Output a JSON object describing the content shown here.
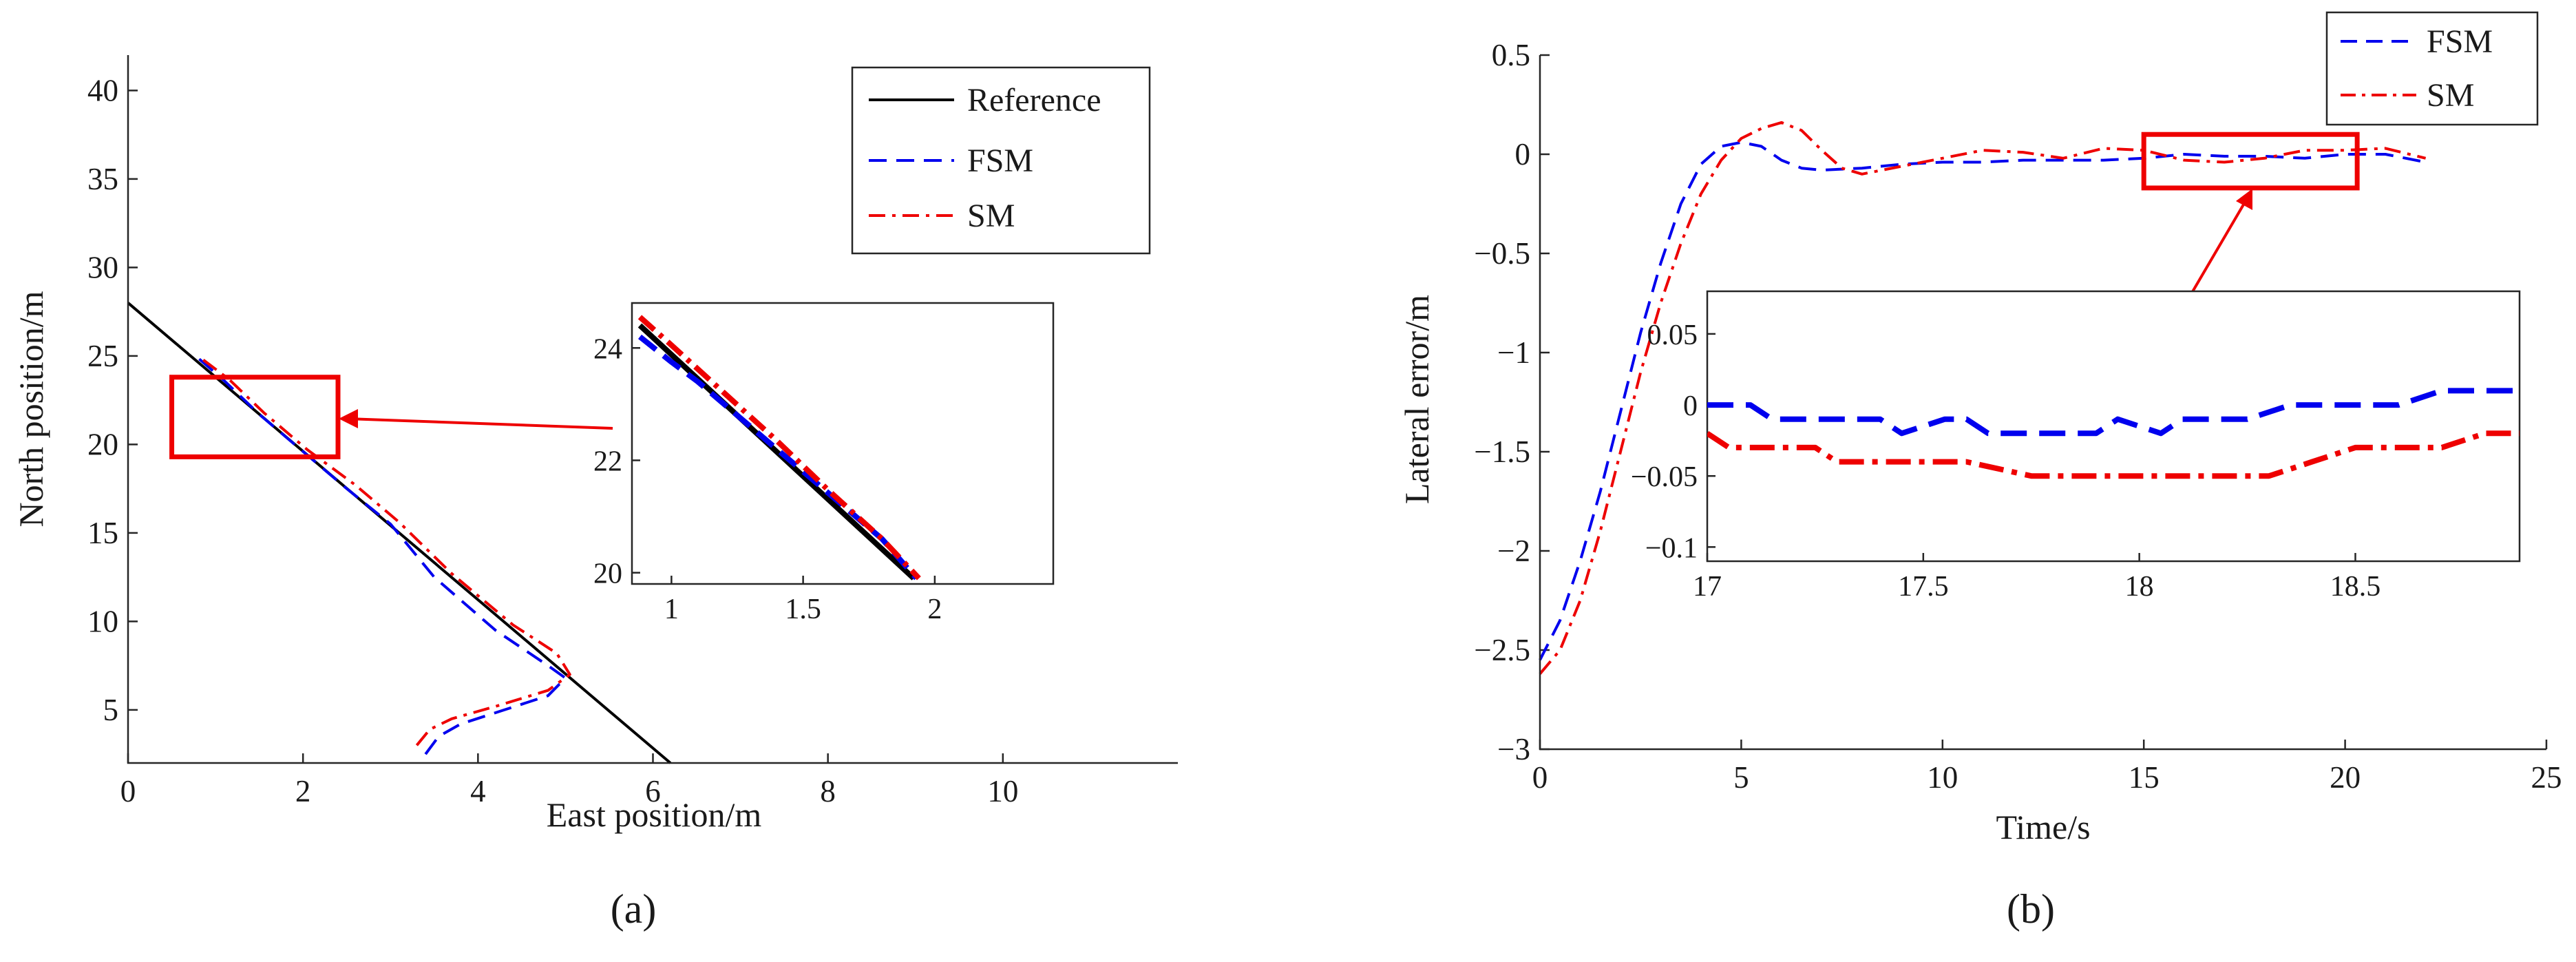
{
  "chart_data": [
    {
      "panel": "a",
      "type": "line",
      "xlabel": "East position/m",
      "ylabel": "North position/m",
      "xlim": [
        0,
        12
      ],
      "ylim": [
        2,
        42
      ],
      "xticks": [
        0,
        2,
        4,
        6,
        8,
        10
      ],
      "yticks": [
        5,
        10,
        15,
        20,
        25,
        30,
        35,
        40
      ],
      "legend": {
        "placement": "top-right",
        "entries": [
          "Reference",
          "FSM",
          "SM"
        ]
      },
      "series": [
        {
          "name": "Reference",
          "color": "#000000",
          "style": "solid",
          "x": [
            0,
            6.2
          ],
          "y": [
            28,
            2
          ]
        },
        {
          "name": "FSM",
          "color": "#0000ee",
          "style": "dashed",
          "x": [
            3.4,
            3.55,
            3.8,
            4.3,
            4.8,
            5.0,
            4.8,
            4.2,
            3.5,
            3.0,
            2.5,
            2.0,
            1.5,
            1.1,
            0.75
          ],
          "y": [
            2.5,
            3.5,
            4.2,
            5.0,
            5.8,
            6.8,
            7.5,
            9.5,
            12.5,
            15.5,
            17.5,
            19.6,
            21.7,
            23.6,
            25.1
          ]
        },
        {
          "name": "SM",
          "color": "#ee0000",
          "style": "dashdot",
          "x": [
            3.3,
            3.45,
            3.7,
            4.2,
            4.8,
            5.05,
            4.9,
            4.4,
            3.7,
            3.1,
            2.6,
            2.05,
            1.55,
            1.15,
            0.8
          ],
          "y": [
            3.0,
            3.9,
            4.5,
            5.2,
            6.1,
            7.0,
            8.2,
            9.8,
            12.7,
            15.6,
            17.7,
            19.7,
            21.8,
            23.7,
            25.0
          ]
        }
      ],
      "zoom_region": {
        "x": [
          0.5,
          2.4
        ],
        "y": [
          19.3,
          23.8
        ]
      },
      "inset": {
        "xlim": [
          0.85,
          2.45
        ],
        "ylim": [
          19.8,
          24.8
        ],
        "xticks": [
          1,
          1.5,
          2
        ],
        "yticks": [
          20,
          22,
          24
        ],
        "series": [
          {
            "name": "Reference",
            "x": [
              0.88,
              1.92
            ],
            "y": [
              24.4,
              19.9
            ]
          },
          {
            "name": "FSM",
            "x": [
              0.88,
              1.0,
              1.1,
              1.2,
              1.3,
              1.4,
              1.5,
              1.6,
              1.7,
              1.8,
              1.93
            ],
            "y": [
              24.2,
              23.75,
              23.4,
              23.0,
              22.6,
              22.2,
              21.8,
              21.4,
              21.0,
              20.6,
              19.9
            ]
          },
          {
            "name": "SM",
            "x": [
              0.88,
              1.0,
              1.2,
              1.4,
              1.6,
              1.8,
              1.94
            ],
            "y": [
              24.55,
              24.05,
              23.2,
              22.35,
              21.45,
              20.6,
              19.9
            ]
          }
        ]
      }
    },
    {
      "panel": "b",
      "type": "line",
      "xlabel": "Time/s",
      "ylabel": "Lateral error/m",
      "xlim": [
        0,
        25
      ],
      "ylim": [
        -3,
        0.5
      ],
      "xticks": [
        0,
        5,
        10,
        15,
        20,
        25
      ],
      "yticks": [
        -3,
        -2.5,
        -2,
        -1.5,
        -1,
        -0.5,
        0,
        0.5
      ],
      "legend": {
        "placement": "top-right",
        "entries": [
          "FSM",
          "SM"
        ]
      },
      "series": [
        {
          "name": "FSM",
          "color": "#0000ee",
          "style": "dashed",
          "x": [
            0,
            0.5,
            1,
            1.5,
            2,
            2.5,
            3,
            3.5,
            4,
            4.5,
            5,
            5.5,
            6,
            6.5,
            7,
            8,
            9,
            10,
            11,
            12,
            13,
            14,
            15,
            16,
            17,
            18,
            19,
            20,
            21,
            22
          ],
          "y": [
            -2.55,
            -2.35,
            -2.05,
            -1.7,
            -1.3,
            -0.9,
            -0.55,
            -0.25,
            -0.05,
            0.04,
            0.06,
            0.04,
            -0.03,
            -0.07,
            -0.08,
            -0.07,
            -0.05,
            -0.04,
            -0.04,
            -0.03,
            -0.03,
            -0.03,
            -0.02,
            0.0,
            -0.01,
            -0.01,
            -0.02,
            0.0,
            0.0,
            -0.04
          ]
        },
        {
          "name": "SM",
          "color": "#ee0000",
          "style": "dashdot",
          "x": [
            0,
            0.5,
            1,
            1.5,
            2,
            2.5,
            3,
            3.5,
            4,
            4.5,
            5,
            5.5,
            6,
            6.5,
            7,
            7.5,
            8,
            9,
            10,
            11,
            12,
            13,
            14,
            15,
            16,
            17,
            18,
            19,
            20,
            21,
            22
          ],
          "y": [
            -2.62,
            -2.5,
            -2.25,
            -1.9,
            -1.5,
            -1.1,
            -0.75,
            -0.45,
            -0.2,
            -0.03,
            0.08,
            0.13,
            0.16,
            0.12,
            0.02,
            -0.07,
            -0.1,
            -0.06,
            -0.02,
            0.02,
            0.01,
            -0.02,
            0.03,
            0.02,
            -0.03,
            -0.04,
            -0.02,
            0.02,
            0.02,
            0.03,
            -0.02
          ]
        }
      ],
      "zoom_region": {
        "x": [
          15,
          20.3
        ],
        "y": [
          -0.17,
          0.1
        ]
      },
      "inset": {
        "xlim": [
          17,
          18.88
        ],
        "ylim": [
          -0.11,
          0.08
        ],
        "xticks": [
          17,
          17.5,
          18,
          18.5
        ],
        "yticks": [
          -0.1,
          -0.05,
          0,
          0.05
        ],
        "tick_labels_y": [
          "−0.1",
          "−0.05",
          "0",
          "0.05"
        ],
        "series": [
          {
            "name": "FSM",
            "x": [
              17,
              17.1,
              17.15,
              17.3,
              17.4,
              17.45,
              17.55,
              17.6,
              17.65,
              17.8,
              17.9,
              17.95,
              18.05,
              18.1,
              18.15,
              18.25,
              18.35,
              18.6,
              18.7,
              18.8,
              18.88
            ],
            "y": [
              0.0,
              0.0,
              -0.01,
              -0.01,
              -0.01,
              -0.02,
              -0.01,
              -0.01,
              -0.02,
              -0.02,
              -0.02,
              -0.01,
              -0.02,
              -0.01,
              -0.01,
              -0.01,
              0.0,
              0.0,
              0.01,
              0.01,
              0.01
            ]
          },
          {
            "name": "SM",
            "x": [
              17,
              17.05,
              17.15,
              17.25,
              17.3,
              17.55,
              17.6,
              17.75,
              18.2,
              18.3,
              18.4,
              18.5,
              18.6,
              18.7,
              18.8,
              18.88
            ],
            "y": [
              -0.02,
              -0.03,
              -0.03,
              -0.03,
              -0.04,
              -0.04,
              -0.04,
              -0.05,
              -0.05,
              -0.05,
              -0.04,
              -0.03,
              -0.03,
              -0.03,
              -0.02,
              -0.02
            ]
          }
        ]
      }
    }
  ],
  "panel_labels": {
    "a": "(a)",
    "b": "(b)"
  },
  "legend_labels": {
    "reference": "Reference",
    "fsm": "FSM",
    "sm": "SM"
  },
  "colors": {
    "reference": "#000000",
    "fsm": "#0000ee",
    "sm": "#ee0000",
    "zoom_box": "#ee0000"
  }
}
